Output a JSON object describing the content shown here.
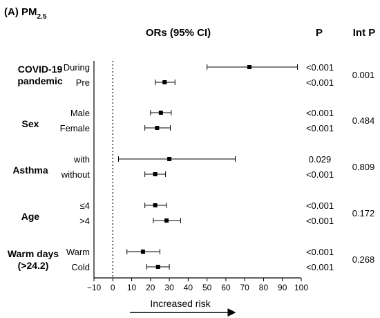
{
  "figure": {
    "panel_label": "(A) PM",
    "panel_sub": "2.5",
    "col_header_or": "ORs (95% CI)",
    "col_header_p": "P",
    "col_header_intp": "Int P",
    "xlabel": "Increased risk"
  },
  "chart_data": {
    "type": "forest",
    "title": "(A) PM2.5",
    "xlabel": "Increased risk",
    "xlim": [
      -10,
      100
    ],
    "xticks": [
      -10,
      0,
      10,
      20,
      30,
      40,
      50,
      60,
      70,
      80,
      90,
      100
    ],
    "tick_labels": [
      "−10",
      "0",
      "10",
      "20",
      "30",
      "40",
      "50",
      "60",
      "70",
      "80",
      "90",
      "100"
    ],
    "reference_line": 0,
    "groups": [
      {
        "name": "COVID-19 pandemic",
        "int_p": "0.001",
        "rows": [
          {
            "label": "During",
            "or": 72.5,
            "lo": 50,
            "hi": 98,
            "p": "<0.001"
          },
          {
            "label": "Pre",
            "or": 27.5,
            "lo": 22.5,
            "hi": 33,
            "p": "<0.001"
          }
        ]
      },
      {
        "name": "Sex",
        "int_p": "0.484",
        "rows": [
          {
            "label": "Male",
            "or": 25.5,
            "lo": 20,
            "hi": 31,
            "p": "<0.001"
          },
          {
            "label": "Female",
            "or": 23.5,
            "lo": 17,
            "hi": 30.5,
            "p": "<0.001"
          }
        ]
      },
      {
        "name": "Asthma",
        "int_p": "0.809",
        "rows": [
          {
            "label": "with",
            "or": 30,
            "lo": 3,
            "hi": 65,
            "p": "0.029"
          },
          {
            "label": "without",
            "or": 22.5,
            "lo": 17,
            "hi": 28,
            "p": "<0.001"
          }
        ]
      },
      {
        "name": "Age",
        "int_p": "0.172",
        "rows": [
          {
            "label": "≤4",
            "or": 22.5,
            "lo": 17,
            "hi": 28.5,
            "p": "<0.001"
          },
          {
            "label": ">4",
            "or": 28.5,
            "lo": 21.5,
            "hi": 36,
            "p": "<0.001"
          }
        ]
      },
      {
        "name": "Warm days (>24.2)",
        "name_lines": [
          "Warm days",
          "(>24.2)"
        ],
        "int_p": "0.268",
        "rows": [
          {
            "label": "Warm",
            "or": 16,
            "lo": 7.5,
            "hi": 25,
            "p": "<0.001"
          },
          {
            "label": "Cold",
            "or": 24,
            "lo": 18,
            "hi": 30,
            "p": "<0.001"
          }
        ]
      }
    ]
  }
}
